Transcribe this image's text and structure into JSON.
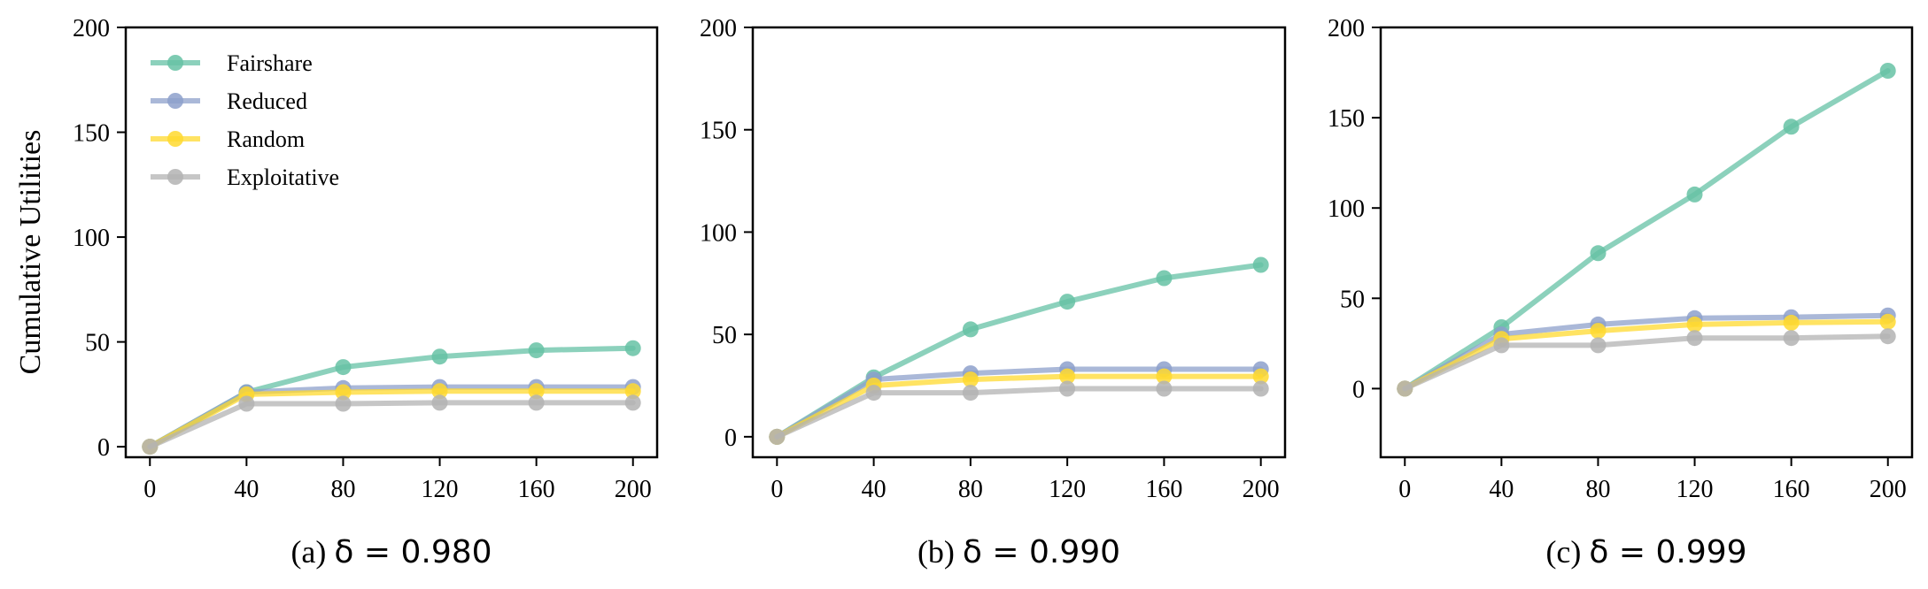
{
  "figure": {
    "ylabel": "Cumulative Utilities"
  },
  "chart_data": [
    {
      "type": "line",
      "caption_prefix": "(a)",
      "caption_math": "δ = 0.980",
      "xlabel": "",
      "ylabel": "Cumulative Utilities",
      "x": [
        0,
        40,
        80,
        120,
        160,
        200
      ],
      "xticks": [
        0,
        40,
        80,
        120,
        160,
        200
      ],
      "yticks": [
        0,
        50,
        100,
        150,
        200
      ],
      "ylim": [
        -5,
        200
      ],
      "xlim": [
        -10,
        210
      ],
      "legend": {
        "placement": "top-left"
      },
      "series": [
        {
          "name": "Fairshare",
          "color": "#66c2a5",
          "values": [
            0,
            26,
            38,
            43,
            46,
            47
          ]
        },
        {
          "name": "Reduced",
          "color": "#8da0cb",
          "values": [
            0,
            26,
            28,
            28.5,
            28.5,
            28.5
          ]
        },
        {
          "name": "Random",
          "color": "#ffd92f",
          "values": [
            0,
            25,
            26,
            26.5,
            26.5,
            26.5
          ]
        },
        {
          "name": "Exploitative",
          "color": "#b3b3b3",
          "values": [
            0,
            20.5,
            20.5,
            21,
            21,
            21
          ]
        }
      ]
    },
    {
      "type": "line",
      "caption_prefix": "(b)",
      "caption_math": "δ = 0.990",
      "xlabel": "",
      "ylabel": "",
      "x": [
        0,
        40,
        80,
        120,
        160,
        200
      ],
      "xticks": [
        0,
        40,
        80,
        120,
        160,
        200
      ],
      "yticks": [
        0,
        50,
        100,
        150,
        200
      ],
      "ylim": [
        -10,
        200
      ],
      "xlim": [
        -10,
        210
      ],
      "series": [
        {
          "name": "Fairshare",
          "color": "#66c2a5",
          "values": [
            0,
            29,
            52.5,
            66,
            77.5,
            84
          ]
        },
        {
          "name": "Reduced",
          "color": "#8da0cb",
          "values": [
            0,
            28,
            31,
            33,
            33,
            33
          ]
        },
        {
          "name": "Random",
          "color": "#ffd92f",
          "values": [
            0,
            25,
            28,
            29.5,
            29.5,
            29.5
          ]
        },
        {
          "name": "Exploitative",
          "color": "#b3b3b3",
          "values": [
            0,
            21.5,
            21.5,
            23.5,
            23.5,
            23.5
          ]
        }
      ]
    },
    {
      "type": "line",
      "caption_prefix": "(c)",
      "caption_math": "δ = 0.999",
      "xlabel": "",
      "ylabel": "",
      "x": [
        0,
        40,
        80,
        120,
        160,
        200
      ],
      "xticks": [
        0,
        40,
        80,
        120,
        160,
        200
      ],
      "yticks": [
        0,
        50,
        100,
        150,
        200
      ],
      "ylim": [
        -38,
        200
      ],
      "xlim": [
        -10,
        210
      ],
      "series": [
        {
          "name": "Fairshare",
          "color": "#66c2a5",
          "values": [
            0,
            34,
            75,
            107.5,
            145,
            176
          ]
        },
        {
          "name": "Reduced",
          "color": "#8da0cb",
          "values": [
            0,
            30,
            35.5,
            39,
            39.5,
            40.5
          ]
        },
        {
          "name": "Random",
          "color": "#ffd92f",
          "values": [
            0,
            27.5,
            32,
            35.5,
            36.5,
            37
          ]
        },
        {
          "name": "Exploitative",
          "color": "#b3b3b3",
          "values": [
            0,
            24,
            24,
            28,
            28,
            29
          ]
        }
      ]
    }
  ]
}
